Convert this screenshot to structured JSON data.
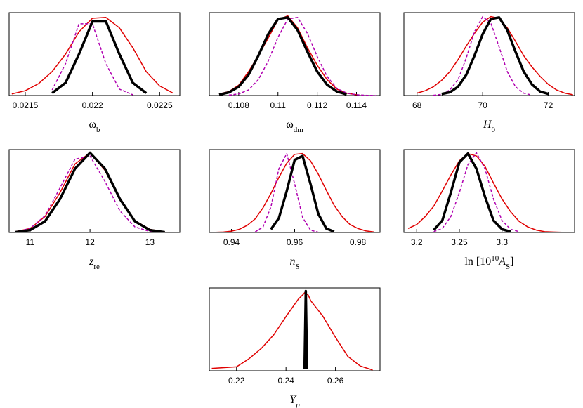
{
  "chart_data": [
    {
      "type": "line",
      "xlim": [
        0.02138,
        0.02265
      ],
      "ylim": [
        0,
        1.04
      ],
      "xticks": [
        0.0215,
        0.022,
        0.0225
      ],
      "xlabel": [
        {
          "text": "ω"
        },
        {
          "text": "b",
          "shift": "sub"
        }
      ],
      "x": [
        0.0214,
        0.0215,
        0.0216,
        0.0217,
        0.0218,
        0.0219,
        0.022,
        0.0221,
        0.0222,
        0.0223,
        0.0224,
        0.0225,
        0.0226
      ],
      "series": [
        {
          "color": "#e00000",
          "linewidth": 1.5,
          "values": [
            0.02,
            0.06,
            0.15,
            0.3,
            0.52,
            0.8,
            0.97,
            0.98,
            0.85,
            0.6,
            0.3,
            0.12,
            0.03
          ]
        },
        {
          "color": "#b000b0",
          "linewidth": 1.5,
          "dash": true,
          "values": [
            null,
            null,
            null,
            0.07,
            0.4,
            0.9,
            0.9,
            0.4,
            0.08,
            0.01,
            null,
            null,
            null
          ]
        },
        {
          "color": "#000000",
          "linewidth": 3.5,
          "values": [
            null,
            null,
            null,
            0.03,
            0.16,
            0.52,
            0.93,
            0.93,
            0.52,
            0.16,
            0.03,
            null,
            null
          ]
        }
      ]
    },
    {
      "type": "line",
      "xlim": [
        0.1065,
        0.1152
      ],
      "ylim": [
        0,
        1.04
      ],
      "xticks": [
        0.108,
        0.11,
        0.112,
        0.114
      ],
      "xlabel": [
        {
          "text": "ω"
        },
        {
          "text": "dm",
          "shift": "sub"
        }
      ],
      "x": [
        0.107,
        0.1075,
        0.108,
        0.1085,
        0.109,
        0.1095,
        0.11,
        0.1105,
        0.111,
        0.1115,
        0.112,
        0.1125,
        0.113,
        0.1135,
        0.114,
        0.1145,
        0.115
      ],
      "series": [
        {
          "color": "#e00000",
          "linewidth": 1.5,
          "values": [
            0.02,
            0.05,
            0.13,
            0.3,
            0.5,
            0.72,
            0.95,
            1.0,
            0.85,
            0.6,
            0.38,
            0.2,
            0.08,
            0.03,
            0.01,
            null,
            null
          ]
        },
        {
          "color": "#b000b0",
          "linewidth": 1.5,
          "dash": true,
          "values": [
            null,
            0.005,
            0.02,
            0.07,
            0.2,
            0.43,
            0.73,
            0.96,
            0.98,
            0.78,
            0.49,
            0.24,
            0.09,
            0.03,
            0.01,
            0.003,
            0
          ]
        },
        {
          "color": "#000000",
          "linewidth": 3.5,
          "values": [
            0.011,
            0.039,
            0.11,
            0.26,
            0.5,
            0.77,
            0.96,
            0.98,
            0.82,
            0.55,
            0.3,
            0.135,
            0.05,
            0.015,
            null,
            null,
            null
          ]
        }
      ]
    },
    {
      "type": "line",
      "xlim": [
        67.6,
        72.8
      ],
      "ylim": [
        0,
        1.04
      ],
      "xticks": [
        68,
        70,
        72
      ],
      "xlabel": [
        {
          "text": "H",
          "italic": true
        },
        {
          "text": "0",
          "shift": "sub"
        }
      ],
      "x": [
        68,
        68.25,
        68.5,
        68.75,
        69,
        69.25,
        69.5,
        69.75,
        70,
        70.25,
        70.5,
        70.75,
        71,
        71.25,
        71.5,
        71.75,
        72,
        72.25,
        72.5,
        72.75
      ],
      "series": [
        {
          "color": "#e00000",
          "linewidth": 1.5,
          "values": [
            0.03,
            0.06,
            0.11,
            0.19,
            0.3,
            0.45,
            0.62,
            0.78,
            0.92,
            0.99,
            0.97,
            0.85,
            0.68,
            0.5,
            0.36,
            0.24,
            0.14,
            0.07,
            0.03,
            0.01
          ]
        },
        {
          "color": "#b000b0",
          "linewidth": 1.5,
          "dash": true,
          "values": [
            null,
            null,
            0.003,
            0.015,
            0.07,
            0.2,
            0.47,
            0.8,
            0.99,
            0.91,
            0.61,
            0.3,
            0.11,
            0.03,
            0.005,
            null,
            null,
            null,
            null,
            null
          ]
        },
        {
          "color": "#000000",
          "linewidth": 3.5,
          "values": [
            null,
            null,
            null,
            0.02,
            0.04,
            0.11,
            0.26,
            0.5,
            0.77,
            0.96,
            0.98,
            0.82,
            0.55,
            0.3,
            0.14,
            0.05,
            0.02,
            null,
            null,
            null
          ]
        }
      ]
    },
    {
      "type": "line",
      "xlim": [
        10.65,
        13.5
      ],
      "ylim": [
        0,
        1.04
      ],
      "xticks": [
        11,
        12,
        13
      ],
      "xlabel": [
        {
          "text": "z",
          "italic": true
        },
        {
          "text": "re",
          "shift": "sub"
        }
      ],
      "x": [
        10.75,
        11,
        11.25,
        11.5,
        11.75,
        12,
        12.25,
        12.5,
        12.75,
        13,
        13.25
      ],
      "series": [
        {
          "color": "#e00000",
          "linewidth": 1.5,
          "values": [
            0.01,
            0.05,
            0.2,
            0.5,
            0.86,
            1.0,
            0.78,
            0.41,
            0.15,
            0.04,
            0.006
          ]
        },
        {
          "color": "#b000b0",
          "linewidth": 1.5,
          "dash": true,
          "values": [
            0.008,
            0.05,
            0.21,
            0.56,
            0.92,
            0.96,
            0.64,
            0.27,
            0.07,
            0.012,
            0.001
          ]
        },
        {
          "color": "#000000",
          "linewidth": 3.5,
          "values": [
            0.004,
            0.03,
            0.14,
            0.42,
            0.8,
            1.0,
            0.8,
            0.42,
            0.14,
            0.03,
            0.004
          ]
        }
      ]
    },
    {
      "type": "line",
      "xlim": [
        0.933,
        0.987
      ],
      "ylim": [
        0,
        1.04
      ],
      "xticks": [
        0.94,
        0.96,
        0.98
      ],
      "xlabel": [
        {
          "text": "n",
          "italic": true
        },
        {
          "text": "S",
          "shift": "sub"
        }
      ],
      "x": [
        0.935,
        0.9375,
        0.94,
        0.9425,
        0.945,
        0.9475,
        0.95,
        0.9525,
        0.955,
        0.9575,
        0.96,
        0.9625,
        0.965,
        0.9675,
        0.97,
        0.9725,
        0.975,
        0.9775,
        0.98,
        0.9825,
        0.985
      ],
      "series": [
        {
          "color": "#e00000",
          "linewidth": 1.5,
          "values": [
            0.002,
            0.006,
            0.016,
            0.04,
            0.09,
            0.17,
            0.31,
            0.49,
            0.69,
            0.87,
            0.98,
            0.99,
            0.9,
            0.73,
            0.53,
            0.34,
            0.2,
            0.1,
            0.05,
            0.02,
            0.007
          ]
        },
        {
          "color": "#b000b0",
          "linewidth": 1.5,
          "dash": true,
          "values": [
            null,
            null,
            null,
            null,
            null,
            0.007,
            0.07,
            0.32,
            0.8,
            0.99,
            0.61,
            0.19,
            0.03,
            0.002,
            null,
            null,
            null,
            null,
            null,
            null,
            null
          ]
        },
        {
          "color": "#000000",
          "linewidth": 3.5,
          "values": [
            null,
            null,
            null,
            null,
            null,
            null,
            null,
            0.04,
            0.18,
            0.52,
            0.91,
            0.96,
            0.61,
            0.23,
            0.05,
            0.01,
            null,
            null,
            null,
            null,
            null
          ]
        }
      ]
    },
    {
      "type": "line",
      "xlim": [
        3.185,
        3.385
      ],
      "ylim": [
        0,
        1.04
      ],
      "xticks": [
        3.2,
        3.25,
        3.3
      ],
      "xlabel": [
        {
          "text": "ln [10"
        },
        {
          "text": "10",
          "shift": "super"
        },
        {
          "text": "A",
          "italic": true
        },
        {
          "text": "S",
          "shift": "sub"
        },
        {
          "text": "]"
        }
      ],
      "x": [
        3.19,
        3.2,
        3.21,
        3.22,
        3.23,
        3.24,
        3.25,
        3.26,
        3.27,
        3.28,
        3.29,
        3.3,
        3.31,
        3.32,
        3.33,
        3.34,
        3.35,
        3.36,
        3.37,
        3.38
      ],
      "series": [
        {
          "color": "#e00000",
          "linewidth": 1.5,
          "values": [
            0.05,
            0.1,
            0.2,
            0.33,
            0.52,
            0.72,
            0.9,
            0.99,
            0.96,
            0.83,
            0.62,
            0.42,
            0.26,
            0.14,
            0.07,
            0.03,
            0.01,
            0.005,
            0.002,
            0.001
          ]
        },
        {
          "color": "#b000b0",
          "linewidth": 1.5,
          "dash": true,
          "values": [
            null,
            null,
            null,
            0.01,
            0.05,
            0.2,
            0.5,
            0.85,
            1.0,
            0.8,
            0.42,
            0.15,
            0.04,
            0.01,
            null,
            null,
            null,
            null,
            null,
            null
          ]
        },
        {
          "color": "#000000",
          "linewidth": 3.5,
          "values": [
            null,
            null,
            null,
            0.03,
            0.15,
            0.5,
            0.88,
            0.99,
            0.8,
            0.45,
            0.15,
            0.04,
            0.01,
            null,
            null,
            null,
            null,
            null,
            null,
            null
          ]
        }
      ]
    },
    {
      "type": "line",
      "xlim": [
        0.209,
        0.278
      ],
      "ylim": [
        0,
        1.04
      ],
      "xticks": [
        0.22,
        0.24,
        0.26
      ],
      "xlabel": [
        {
          "text": "Y",
          "italic": true
        },
        {
          "text": "p",
          "shift": "sub",
          "italic": true
        }
      ],
      "x": [
        0.21,
        0.215,
        0.22,
        0.225,
        0.23,
        0.235,
        0.24,
        0.245,
        0.247,
        0.2475,
        0.248,
        0.2485,
        0.249,
        0.25,
        0.255,
        0.26,
        0.265,
        0.27,
        0.275
      ],
      "series": [
        {
          "color": "#e00000",
          "linewidth": 1.5,
          "values": [
            0.03,
            0.04,
            0.05,
            0.15,
            0.28,
            0.45,
            0.68,
            0.9,
            0.96,
            0.98,
            0.98,
            0.96,
            0.95,
            0.88,
            0.68,
            0.42,
            0.18,
            0.06,
            0.01
          ]
        },
        {
          "color": "#000000",
          "linewidth": 3.5,
          "values": [
            null,
            null,
            null,
            null,
            null,
            null,
            null,
            null,
            null,
            0.02,
            1.0,
            0.02,
            null,
            null,
            null,
            null,
            null,
            null,
            null
          ]
        }
      ]
    }
  ]
}
